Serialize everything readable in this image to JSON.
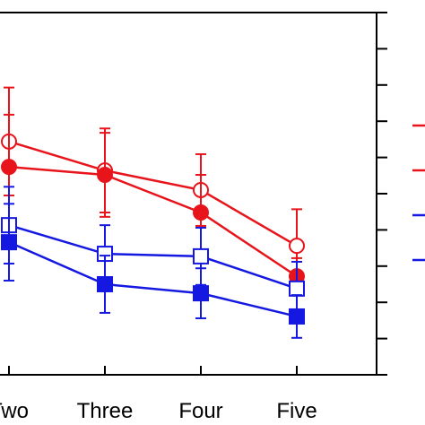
{
  "chart_data": {
    "type": "line",
    "categories": [
      "Two",
      "Three",
      "Four",
      "Five"
    ],
    "ylim": [
      0,
      10
    ],
    "yticks": [
      0,
      1,
      2,
      3,
      4,
      5,
      6,
      7,
      8,
      9,
      10
    ],
    "series": [
      {
        "color": "#e8141b",
        "marker": "circle",
        "filled": false,
        "values": [
          6.44,
          5.64,
          5.1,
          3.56
        ],
        "errors": [
          1.49,
          1.16,
          0.99,
          1.01
        ]
      },
      {
        "color": "#e8141b",
        "marker": "circle",
        "filled": true,
        "values": [
          5.74,
          5.52,
          4.48,
          2.72
        ],
        "errors": [
          1.44,
          1.16,
          1.04,
          0.5
        ]
      },
      {
        "color": "#1418e0",
        "marker": "square",
        "filled": false,
        "values": [
          4.13,
          3.34,
          3.27,
          2.38
        ],
        "errors": [
          1.06,
          0.79,
          0.79,
          0.74
        ]
      },
      {
        "color": "#1418e0",
        "marker": "square",
        "filled": true,
        "values": [
          3.66,
          2.5,
          2.25,
          1.61
        ],
        "errors": [
          1.06,
          0.79,
          0.69,
          0.59
        ]
      }
    ]
  }
}
